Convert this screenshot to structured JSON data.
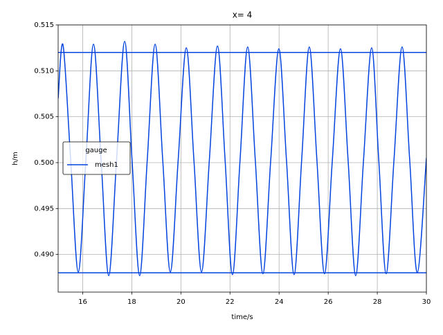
{
  "chart_data": {
    "type": "line",
    "title": "x= 4",
    "x_label": "time/s",
    "y_label": "h/m",
    "x": [
      15.0,
      15.2,
      15.51,
      15.82,
      16.13,
      16.44,
      16.75,
      17.06,
      17.38,
      17.71,
      18.01,
      18.32,
      18.63,
      18.95,
      19.26,
      19.57,
      19.89,
      20.22,
      20.53,
      20.84,
      21.16,
      21.49,
      21.8,
      22.1,
      22.41,
      22.72,
      23.03,
      23.34,
      23.66,
      23.99,
      24.3,
      24.61,
      24.92,
      25.23,
      25.54,
      25.85,
      26.17,
      26.5,
      26.81,
      27.12,
      27.44,
      27.77,
      28.06,
      28.36,
      28.68,
      29.01,
      29.32,
      29.63,
      30.0
    ],
    "series": [
      {
        "name": "mesh1",
        "color": "#0343df",
        "values": [
          0.507,
          0.5128,
          0.5003,
          0.4881,
          0.5003,
          0.5129,
          0.5003,
          0.4877,
          0.5003,
          0.5132,
          0.5003,
          0.4877,
          0.5003,
          0.5129,
          0.5003,
          0.4881,
          0.5003,
          0.5125,
          0.5003,
          0.4881,
          0.5003,
          0.5127,
          0.5003,
          0.4878,
          0.5003,
          0.5126,
          0.5003,
          0.4879,
          0.5003,
          0.5124,
          0.5003,
          0.4878,
          0.5003,
          0.5126,
          0.5003,
          0.4879,
          0.5003,
          0.5124,
          0.5003,
          0.4877,
          0.5003,
          0.5125,
          0.5003,
          0.4879,
          0.5003,
          0.5126,
          0.5003,
          0.488,
          0.5005
        ]
      }
    ],
    "reference_lines": [
      0.512,
      0.488
    ],
    "reference_color": "#0343df",
    "xlim": [
      15,
      30
    ],
    "xticks": [
      16,
      18,
      20,
      22,
      24,
      26,
      28,
      30
    ],
    "ylim": [
      0.4859,
      0.515
    ],
    "yticks": [
      {
        "value": 0.49,
        "label": "0.490"
      },
      0.495,
      {
        "value": 0.5,
        "label": "0.500"
      },
      0.505,
      {
        "value": 0.51,
        "label": "0.510"
      },
      0.515
    ],
    "grid": true,
    "legend_title": "gauge",
    "legend": "center left"
  }
}
